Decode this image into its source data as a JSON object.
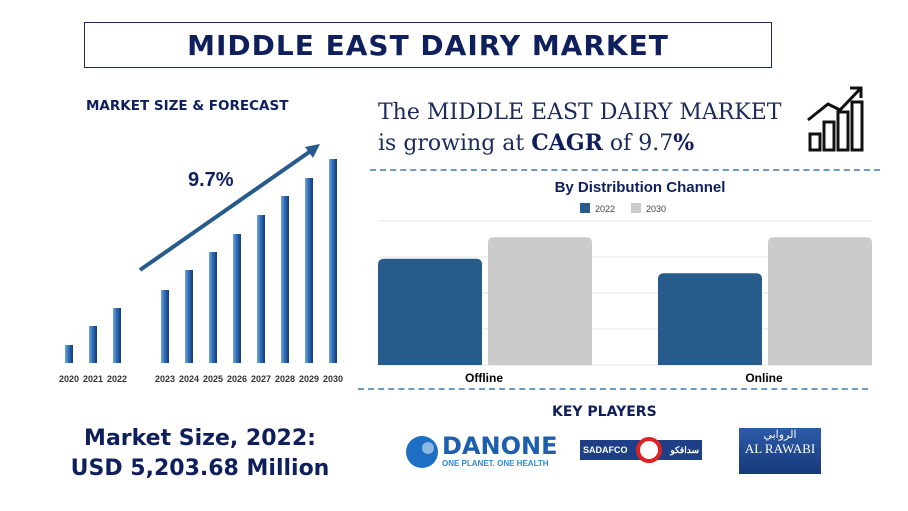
{
  "header": {
    "title": "MIDDLE EAST DAIRY MARKET"
  },
  "forecast": {
    "label": "MARKET SIZE & FORECAST"
  },
  "headline": {
    "line1": "The MIDDLE EAST DAIRY MARKET",
    "line2_pre": "is growing at ",
    "cagr_word": "CAGR",
    "line2_mid": " of 9.7",
    "percent": "%"
  },
  "key_players": {
    "label": "KEY PLAYERS",
    "logos": [
      "DANONE",
      "ONE PLANET. ONE HEALTH",
      "SADAFCO",
      "سدافكو",
      "AL RAWABI",
      "الروابي"
    ]
  },
  "market_size": {
    "line1": "Market Size, 2022:",
    "line2": "USD 5,203.68 Million"
  },
  "colors": {
    "navy": "#0f1f5c",
    "bar_blue": "#275b8b",
    "bar_gray": "#cbcbcb"
  },
  "chart_data": [
    {
      "type": "bar",
      "title": "",
      "categories": [
        "2020",
        "2021",
        "2022",
        "2023",
        "2024",
        "2025",
        "2026",
        "2027",
        "2028",
        "2029",
        "2030"
      ],
      "values": [
        18,
        37,
        55,
        73,
        93,
        111,
        129,
        148,
        167,
        185,
        204
      ],
      "annotation": "9.7%",
      "axes_shown": false
    },
    {
      "type": "bar",
      "title": "By Distribution Channel",
      "categories": [
        "Offline",
        "Online"
      ],
      "series": [
        {
          "name": "2022",
          "values": [
            2.95,
            2.55
          ]
        },
        {
          "name": "2030",
          "values": [
            3.55,
            3.55
          ]
        }
      ],
      "ylim": [
        0,
        4
      ],
      "grid": true,
      "legend": "top"
    }
  ]
}
